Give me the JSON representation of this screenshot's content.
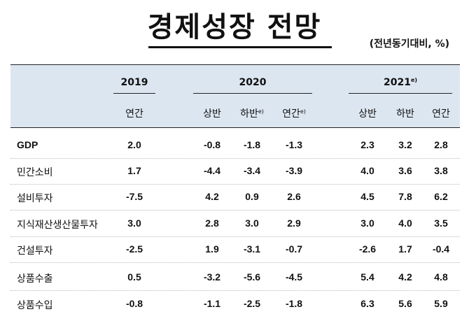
{
  "title": "경제성장 전망",
  "unit_note": "(전년동기대비, %)",
  "years": {
    "y2019": "2019",
    "y2020": "2020",
    "y2021": "2021",
    "y2021_note": "e)"
  },
  "subheaders": {
    "c2019": "연간",
    "c2020_h1": "상반",
    "c2020_h2": "하반",
    "c2020_h2_note": "e)",
    "c2020_year": "연간",
    "c2020_year_note": "e)",
    "c2021_h1": "상반",
    "c2021_h2": "하반",
    "c2021_year": "연간"
  },
  "rows": [
    {
      "label": "GDP",
      "values": [
        "2.0",
        "-0.8",
        "-1.8",
        "-1.3",
        "2.3",
        "3.2",
        "2.8"
      ]
    },
    {
      "label": "민간소비",
      "values": [
        "1.7",
        "-4.4",
        "-3.4",
        "-3.9",
        "4.0",
        "3.6",
        "3.8"
      ]
    },
    {
      "label": "설비투자",
      "values": [
        "-7.5",
        "4.2",
        "0.9",
        "2.6",
        "4.5",
        "7.8",
        "6.2"
      ]
    },
    {
      "label": "지식재산생산물투자",
      "values": [
        "3.0",
        "2.8",
        "3.0",
        "2.9",
        "3.0",
        "4.0",
        "3.5"
      ]
    },
    {
      "label": "건설투자",
      "values": [
        "-2.5",
        "1.9",
        "-3.1",
        "-0.7",
        "-2.6",
        "1.7",
        "-0.4"
      ]
    },
    {
      "label": "상품수출",
      "values": [
        "0.5",
        "-3.2",
        "-5.6",
        "-4.5",
        "5.4",
        "4.2",
        "4.8"
      ]
    },
    {
      "label": "상품수입",
      "values": [
        "-0.8",
        "-1.1",
        "-2.5",
        "-1.8",
        "6.3",
        "5.6",
        "5.9"
      ]
    }
  ]
}
